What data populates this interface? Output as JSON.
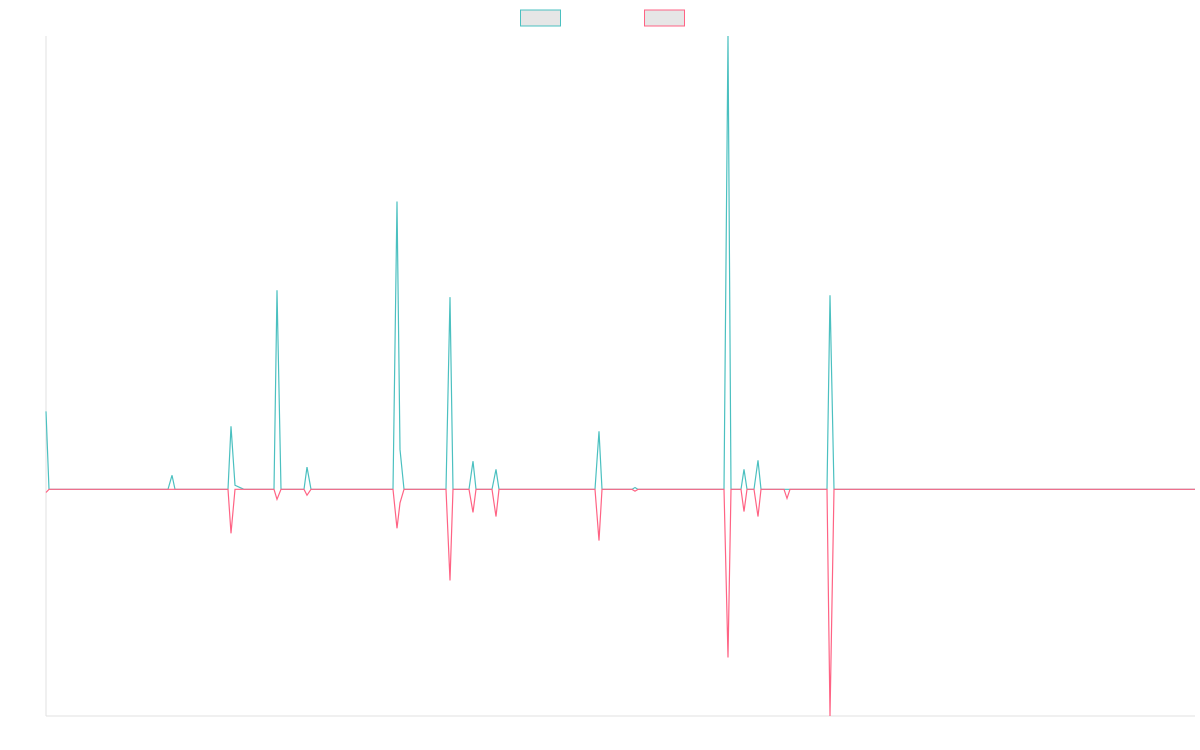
{
  "chart_data": {
    "type": "line",
    "x": [
      0,
      3,
      122,
      126,
      129,
      182,
      185,
      189,
      194,
      198,
      228,
      231,
      235,
      258,
      261,
      265,
      347,
      351,
      354,
      358,
      400,
      404,
      407,
      423,
      427,
      430,
      446,
      450,
      453,
      549,
      553,
      556,
      586,
      589,
      592,
      678,
      682,
      685,
      695,
      698,
      701,
      708,
      712,
      715,
      738,
      741,
      744,
      781,
      784,
      788,
      1149
    ],
    "series": [
      {
        "color": "#4bc0c0",
        "values": [
          17.2,
          0,
          0,
          3.1,
          0,
          0,
          13.9,
          0.9,
          0.4,
          0,
          0,
          43.9,
          0,
          0,
          4.9,
          0,
          0,
          63.5,
          8.8,
          0,
          0,
          42.4,
          0,
          0,
          6.2,
          0,
          0,
          4.4,
          0,
          0,
          12.8,
          0,
          0,
          0.4,
          0,
          0,
          100,
          0,
          0,
          4.4,
          0,
          0,
          6.4,
          0,
          0,
          0,
          0,
          0,
          42.8,
          0,
          0
        ]
      },
      {
        "color": "#ff6384",
        "values": [
          -0.7,
          0,
          0,
          0,
          0,
          0,
          -9.7,
          0,
          0,
          0,
          0,
          -2.2,
          0,
          0,
          -1.3,
          0,
          0,
          -8.6,
          -3,
          0,
          0,
          -20.1,
          0,
          0,
          -5.1,
          0,
          0,
          -6,
          0,
          0,
          -11.3,
          0,
          0,
          -0.4,
          0,
          0,
          -37.1,
          0,
          0,
          -4.9,
          0,
          0,
          -6,
          0,
          0,
          -2,
          0,
          0,
          -50,
          0,
          0
        ]
      }
    ],
    "xlim": [
      0,
      1149
    ],
    "ylim": [
      -50,
      100
    ],
    "legend": "top"
  }
}
